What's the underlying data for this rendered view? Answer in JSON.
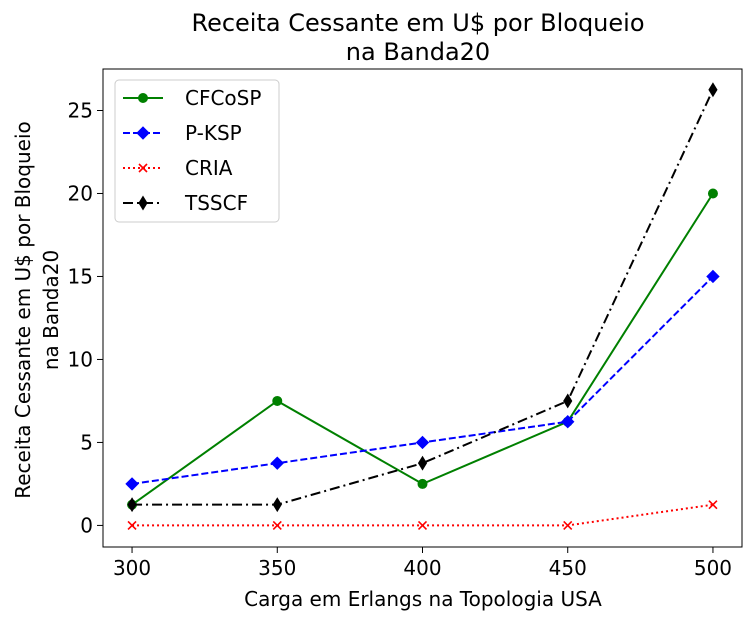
{
  "chart_data": {
    "type": "line",
    "title_lines": [
      "Receita Cessante em U$ por Bloqueio",
      "na Banda20"
    ],
    "xlabel": "Carga em Erlangs na Topologia USA",
    "ylabel_lines": [
      "Receita Cessante em U$ por Bloqueio",
      "na Banda20"
    ],
    "x": [
      300,
      350,
      400,
      450,
      500
    ],
    "xticks": [
      "300",
      "350",
      "400",
      "450",
      "500"
    ],
    "yticks": [
      0,
      5,
      10,
      15,
      20,
      25
    ],
    "xlim": [
      290,
      510
    ],
    "ylim": [
      -1.3,
      27.5
    ],
    "grid": false,
    "legend_position": "top-left",
    "series": [
      {
        "name": "CFCoSP",
        "values": [
          1.25,
          7.5,
          2.5,
          6.25,
          20.0
        ],
        "color": "#008000",
        "dash": "solid",
        "marker": "circle"
      },
      {
        "name": "P-KSP",
        "values": [
          2.5,
          3.75,
          5.0,
          6.25,
          15.0
        ],
        "color": "#0000ff",
        "dash": "dashed",
        "marker": "diamond"
      },
      {
        "name": "CRIA",
        "values": [
          0,
          0,
          0,
          0,
          1.25
        ],
        "color": "#ff0000",
        "dash": "dotted",
        "marker": "x"
      },
      {
        "name": "TSSCF",
        "values": [
          1.25,
          1.25,
          3.75,
          7.5,
          26.25
        ],
        "color": "#000000",
        "dash": "dashdot",
        "marker": "thin-diamond"
      }
    ]
  }
}
